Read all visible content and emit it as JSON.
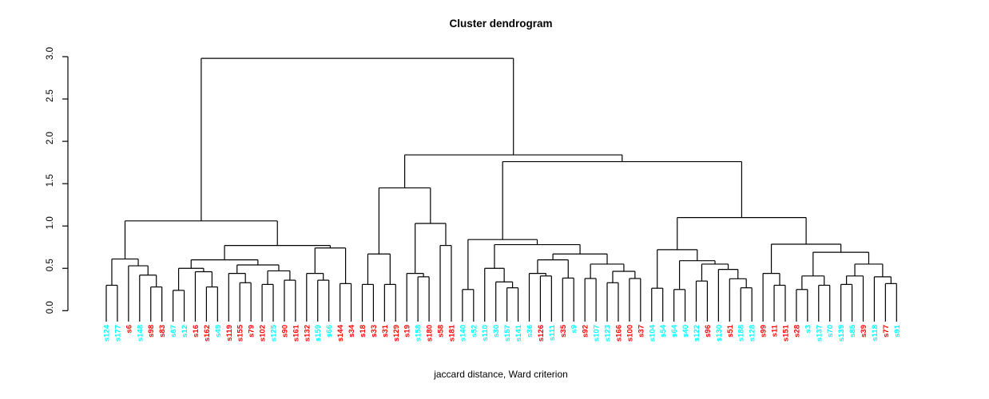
{
  "chart_data": {
    "type": "dendrogram",
    "title": "Cluster dendrogram",
    "xlabel": "jaccard distance, Ward criterion",
    "y_axis": {
      "min": 0,
      "max": 3,
      "ticks": [
        "0.0",
        "0.5",
        "1.0",
        "1.5",
        "2.0",
        "2.5",
        "3.0"
      ]
    },
    "grid": false,
    "legend": false,
    "colors": {
      "red": "#FF0000",
      "cyan": "#00FFFF",
      "line": "#000000"
    },
    "leaves": [
      {
        "label": "s124",
        "color": "cyan"
      },
      {
        "label": "s177",
        "color": "cyan"
      },
      {
        "label": "s6",
        "color": "red"
      },
      {
        "label": "s148",
        "color": "cyan"
      },
      {
        "label": "s98",
        "color": "red"
      },
      {
        "label": "s83",
        "color": "red"
      },
      {
        "label": "s67",
        "color": "cyan"
      },
      {
        "label": "s12",
        "color": "cyan"
      },
      {
        "label": "s16",
        "color": "red"
      },
      {
        "label": "s162",
        "color": "red"
      },
      {
        "label": "s49",
        "color": "cyan"
      },
      {
        "label": "s119",
        "color": "red"
      },
      {
        "label": "s155",
        "color": "red"
      },
      {
        "label": "s79",
        "color": "red"
      },
      {
        "label": "s102",
        "color": "red"
      },
      {
        "label": "s125",
        "color": "cyan"
      },
      {
        "label": "s90",
        "color": "red"
      },
      {
        "label": "s161",
        "color": "red"
      },
      {
        "label": "s132",
        "color": "red"
      },
      {
        "label": "s159",
        "color": "cyan"
      },
      {
        "label": "s66",
        "color": "cyan"
      },
      {
        "label": "s144",
        "color": "red"
      },
      {
        "label": "s34",
        "color": "red"
      },
      {
        "label": "s18",
        "color": "red"
      },
      {
        "label": "s33",
        "color": "red"
      },
      {
        "label": "s31",
        "color": "red"
      },
      {
        "label": "s129",
        "color": "red"
      },
      {
        "label": "s19",
        "color": "red"
      },
      {
        "label": "s158",
        "color": "cyan"
      },
      {
        "label": "s180",
        "color": "red"
      },
      {
        "label": "s58",
        "color": "red"
      },
      {
        "label": "s181",
        "color": "red"
      },
      {
        "label": "s140",
        "color": "cyan"
      },
      {
        "label": "s52",
        "color": "cyan"
      },
      {
        "label": "s110",
        "color": "cyan"
      },
      {
        "label": "s30",
        "color": "cyan"
      },
      {
        "label": "s157",
        "color": "cyan"
      },
      {
        "label": "s141",
        "color": "cyan"
      },
      {
        "label": "s36",
        "color": "cyan"
      },
      {
        "label": "s126",
        "color": "red"
      },
      {
        "label": "s111",
        "color": "cyan"
      },
      {
        "label": "s35",
        "color": "red"
      },
      {
        "label": "s9",
        "color": "cyan"
      },
      {
        "label": "s92",
        "color": "red"
      },
      {
        "label": "s107",
        "color": "cyan"
      },
      {
        "label": "s123",
        "color": "cyan"
      },
      {
        "label": "s166",
        "color": "red"
      },
      {
        "label": "s100",
        "color": "red"
      },
      {
        "label": "s37",
        "color": "red"
      },
      {
        "label": "s104",
        "color": "cyan"
      },
      {
        "label": "s54",
        "color": "cyan"
      },
      {
        "label": "s64",
        "color": "cyan"
      },
      {
        "label": "s40",
        "color": "cyan"
      },
      {
        "label": "s122",
        "color": "cyan"
      },
      {
        "label": "s96",
        "color": "red"
      },
      {
        "label": "s130",
        "color": "cyan"
      },
      {
        "label": "s51",
        "color": "red"
      },
      {
        "label": "s188",
        "color": "cyan"
      },
      {
        "label": "s128",
        "color": "cyan"
      },
      {
        "label": "s99",
        "color": "red"
      },
      {
        "label": "s11",
        "color": "red"
      },
      {
        "label": "s151",
        "color": "red"
      },
      {
        "label": "s28",
        "color": "red"
      },
      {
        "label": "s3",
        "color": "cyan"
      },
      {
        "label": "s137",
        "color": "cyan"
      },
      {
        "label": "s70",
        "color": "cyan"
      },
      {
        "label": "s139",
        "color": "cyan"
      },
      {
        "label": "s85",
        "color": "cyan"
      },
      {
        "label": "s39",
        "color": "red"
      },
      {
        "label": "s118",
        "color": "cyan"
      },
      {
        "label": "s77",
        "color": "red"
      },
      {
        "label": "s91",
        "color": "cyan"
      }
    ],
    "tree": {
      "h": 2.98,
      "c": [
        {
          "h": 1.06,
          "c": [
            {
              "h": 0.61,
              "c": [
                {
                  "h": 0.3,
                  "c": [
                    "s124",
                    "s177"
                  ]
                },
                {
                  "h": 0.53,
                  "c": [
                    "s6",
                    {
                      "h": 0.42,
                      "c": [
                        "s148",
                        {
                          "h": 0.28,
                          "c": [
                            "s98",
                            "s83"
                          ]
                        }
                      ]
                    }
                  ]
                }
              ]
            },
            {
              "h": 0.77,
              "c": [
                {
                  "h": 0.6,
                  "c": [
                    {
                      "h": 0.5,
                      "c": [
                        {
                          "h": 0.24,
                          "c": [
                            "s67",
                            "s12"
                          ]
                        },
                        {
                          "h": 0.46,
                          "c": [
                            "s16",
                            {
                              "h": 0.28,
                              "c": [
                                "s162",
                                "s49"
                              ]
                            }
                          ]
                        }
                      ]
                    },
                    {
                      "h": 0.54,
                      "c": [
                        {
                          "h": 0.44,
                          "c": [
                            "s119",
                            {
                              "h": 0.33,
                              "c": [
                                "s155",
                                "s79"
                              ]
                            }
                          ]
                        },
                        {
                          "h": 0.47,
                          "c": [
                            {
                              "h": 0.31,
                              "c": [
                                "s102",
                                "s125"
                              ]
                            },
                            {
                              "h": 0.36,
                              "c": [
                                "s90",
                                "s161"
                              ]
                            }
                          ]
                        }
                      ]
                    }
                  ]
                },
                {
                  "h": 0.74,
                  "c": [
                    {
                      "h": 0.44,
                      "c": [
                        "s132",
                        {
                          "h": 0.36,
                          "c": [
                            "s159",
                            "s66"
                          ]
                        }
                      ]
                    },
                    {
                      "h": 0.32,
                      "c": [
                        "s144",
                        "s34"
                      ]
                    }
                  ]
                }
              ]
            }
          ]
        },
        {
          "h": 1.84,
          "c": [
            {
              "h": 1.45,
              "c": [
                {
                  "h": 0.67,
                  "c": [
                    {
                      "h": 0.31,
                      "c": [
                        "s18",
                        "s33"
                      ]
                    },
                    {
                      "h": 0.31,
                      "c": [
                        "s31",
                        "s129"
                      ]
                    }
                  ]
                },
                {
                  "h": 1.03,
                  "c": [
                    {
                      "h": 0.44,
                      "c": [
                        "s19",
                        {
                          "h": 0.4,
                          "c": [
                            "s158",
                            "s180"
                          ]
                        }
                      ]
                    },
                    {
                      "h": 0.77,
                      "c": [
                        "s58",
                        "s181"
                      ]
                    }
                  ]
                }
              ]
            },
            {
              "h": 1.76,
              "c": [
                {
                  "h": 0.84,
                  "c": [
                    {
                      "h": 0.25,
                      "c": [
                        "s140",
                        "s52"
                      ]
                    },
                    {
                      "h": 0.78,
                      "c": [
                        {
                          "h": 0.5,
                          "c": [
                            "s110",
                            {
                              "h": 0.34,
                              "c": [
                                "s30",
                                {
                                  "h": 0.27,
                                  "c": [
                                    "s157",
                                    "s141"
                                  ]
                                }
                              ]
                            }
                          ]
                        },
                        {
                          "h": 0.67,
                          "c": [
                            {
                              "h": 0.6,
                              "c": [
                                {
                                  "h": 0.44,
                                  "c": [
                                    "s36",
                                    {
                                      "h": 0.41,
                                      "c": [
                                        "s126",
                                        "s111"
                                      ]
                                    }
                                  ]
                                },
                                {
                                  "h": 0.385,
                                  "c": [
                                    "s35",
                                    "s9"
                                  ]
                                }
                              ]
                            },
                            {
                              "h": 0.55,
                              "c": [
                                {
                                  "h": 0.38,
                                  "c": [
                                    "s92",
                                    "s107"
                                  ]
                                },
                                {
                                  "h": 0.465,
                                  "c": [
                                    {
                                      "h": 0.33,
                                      "c": [
                                        "s123",
                                        "s166"
                                      ]
                                    },
                                    {
                                      "h": 0.38,
                                      "c": [
                                        "s100",
                                        "s37"
                                      ]
                                    }
                                  ]
                                }
                              ]
                            }
                          ]
                        }
                      ]
                    }
                  ]
                },
                {
                  "h": 1.1,
                  "c": [
                    {
                      "h": 0.72,
                      "c": [
                        {
                          "h": 0.265,
                          "c": [
                            "s104",
                            "s54"
                          ]
                        },
                        {
                          "h": 0.59,
                          "c": [
                            {
                              "h": 0.25,
                              "c": [
                                "s64",
                                "s40"
                              ]
                            },
                            {
                              "h": 0.55,
                              "c": [
                                {
                                  "h": 0.35,
                                  "c": [
                                    "s122",
                                    "s96"
                                  ]
                                },
                                {
                                  "h": 0.487,
                                  "c": [
                                    "s130",
                                    {
                                      "h": 0.377,
                                      "c": [
                                        "s51",
                                        {
                                          "h": 0.27,
                                          "c": [
                                            "s188",
                                            "s128"
                                          ]
                                        }
                                      ]
                                    }
                                  ]
                                }
                              ]
                            }
                          ]
                        }
                      ]
                    },
                    {
                      "h": 0.785,
                      "c": [
                        {
                          "h": 0.44,
                          "c": [
                            "s99",
                            {
                              "h": 0.3,
                              "c": [
                                "s11",
                                "s151"
                              ]
                            }
                          ]
                        },
                        {
                          "h": 0.69,
                          "c": [
                            {
                              "h": 0.41,
                              "c": [
                                {
                                  "h": 0.25,
                                  "c": [
                                    "s28",
                                    "s3"
                                  ]
                                },
                                {
                                  "h": 0.3,
                                  "c": [
                                    "s137",
                                    "s70"
                                  ]
                                }
                              ]
                            },
                            {
                              "h": 0.55,
                              "c": [
                                {
                                  "h": 0.41,
                                  "c": [
                                    {
                                      "h": 0.31,
                                      "c": [
                                        "s139",
                                        "s85"
                                      ]
                                    },
                                    "s39"
                                  ]
                                },
                                {
                                  "h": 0.4,
                                  "c": [
                                    "s118",
                                    {
                                      "h": 0.32,
                                      "c": [
                                        "s77",
                                        "s91"
                                      ]
                                    }
                                  ]
                                }
                              ]
                            }
                          ]
                        }
                      ]
                    }
                  ]
                }
              ]
            }
          ]
        }
      ]
    }
  }
}
